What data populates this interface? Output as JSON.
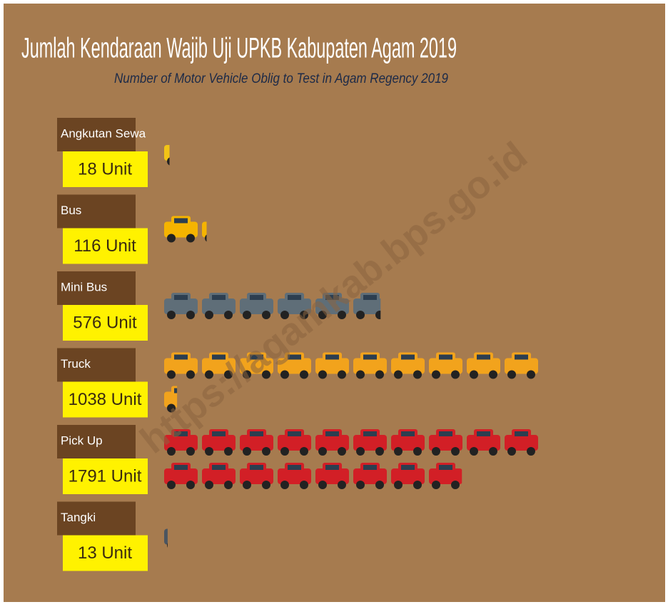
{
  "chart_data": {
    "type": "pictograph",
    "title": "Jumlah Kendaraan Wajib Uji UPKB Kabupaten Agam 2019",
    "subtitle": "Number of Motor Vehicle Oblig to Test in Agam Regency 2019",
    "watermark": "https://agamkab.bps.go.id",
    "categories": [
      "Angkutan Sewa",
      "Bus",
      "Mini Bus",
      "Truck",
      "Pick Up",
      "Tangki"
    ],
    "values": [
      18,
      116,
      576,
      1038,
      1791,
      13
    ],
    "value_labels": [
      "18 Unit",
      "116 Unit",
      "576 Unit",
      "1038 Unit",
      "1791 Unit",
      "13 Unit"
    ],
    "colors": [
      "#f2c416",
      "#f5b400",
      "#5f6e78",
      "#f2a31c",
      "#d21f26",
      "#4a5560"
    ]
  }
}
